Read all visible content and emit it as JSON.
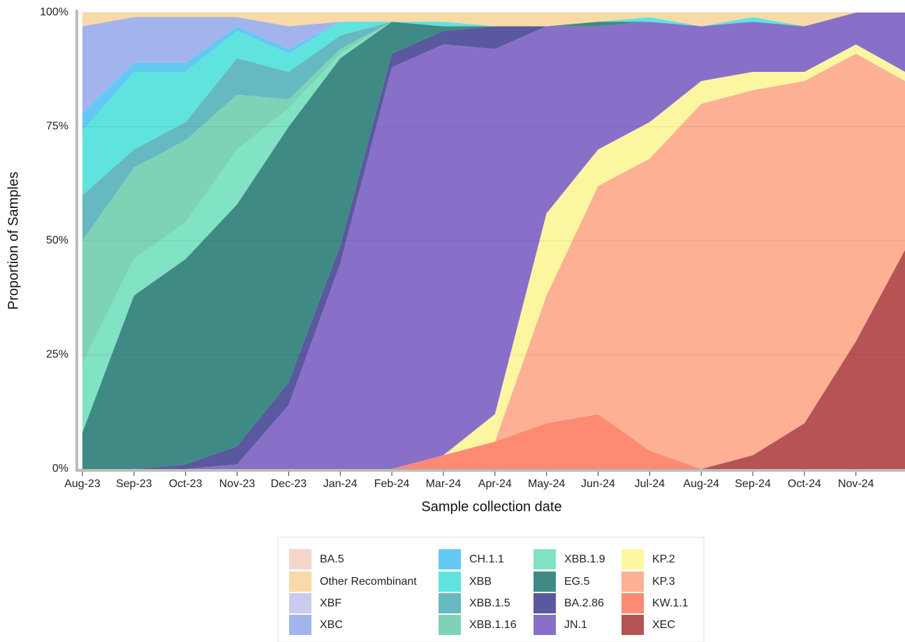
{
  "chart_data": {
    "type": "stacked-area",
    "x_label": "Sample collection date",
    "y_label": "Proportion of Samples",
    "categories": [
      "Aug-23",
      "Sep-23",
      "Oct-23",
      "Nov-23",
      "Dec-23",
      "Jan-24",
      "Feb-24",
      "Mar-24",
      "Apr-24",
      "May-24",
      "Jun-24",
      "Jul-24",
      "Aug-24",
      "Sep-24",
      "Oct-24",
      "Nov-24",
      null
    ],
    "ylim": [
      0,
      100
    ],
    "yticks": [
      {
        "value": 0,
        "label": "0%"
      },
      {
        "value": 25,
        "label": "25%"
      },
      {
        "value": 50,
        "label": "50%"
      },
      {
        "value": 75,
        "label": "75%"
      },
      {
        "value": 100,
        "label": "100%"
      }
    ],
    "grid": true,
    "legend": "bottom",
    "series": [
      {
        "name": "BA.5",
        "color": "#f5d5cc",
        "values": [
          0,
          0,
          0,
          0,
          0,
          0,
          0,
          0,
          0,
          0,
          0,
          0,
          0,
          0,
          0,
          0,
          0
        ]
      },
      {
        "name": "Other Recombinant",
        "color": "#f9d9a8",
        "values": [
          3,
          1,
          1,
          1,
          3,
          2,
          2,
          2,
          3,
          3,
          2,
          1,
          3,
          1,
          3,
          0,
          0
        ]
      },
      {
        "name": "XBF",
        "color": "#c9cbef",
        "values": [
          0,
          0,
          0,
          0,
          0,
          0,
          0,
          0,
          0,
          0,
          0,
          0,
          0,
          0,
          0,
          0,
          0
        ]
      },
      {
        "name": "XBC",
        "color": "#a3b4ec",
        "values": [
          19,
          10,
          10,
          2,
          5,
          0,
          0,
          0,
          0,
          0,
          0,
          0,
          0,
          0,
          0,
          0,
          0
        ]
      },
      {
        "name": "CH.1.1",
        "color": "#63c9f2",
        "values": [
          4,
          2,
          2,
          1,
          1,
          0,
          0,
          0,
          0,
          0,
          0,
          0,
          0,
          0,
          0,
          0,
          0
        ]
      },
      {
        "name": "XBB",
        "color": "#5fe3df",
        "values": [
          14,
          17,
          11,
          6,
          4,
          3,
          0,
          1,
          0,
          0,
          0,
          1,
          0,
          1,
          0,
          0,
          0
        ]
      },
      {
        "name": "XBB.1.5",
        "color": "#66b9c0",
        "values": [
          10,
          4,
          4,
          8,
          6,
          3,
          0,
          0,
          0,
          0,
          0,
          0,
          0,
          0,
          0,
          0,
          0
        ]
      },
      {
        "name": "XBB.1.16",
        "color": "#7ed3b7",
        "values": [
          27,
          20,
          18,
          12,
          2,
          1,
          0,
          0,
          0,
          0,
          0,
          0,
          0,
          0,
          0,
          0,
          0
        ]
      },
      {
        "name": "XBB.1.9",
        "color": "#80e3c3",
        "values": [
          15,
          8,
          8,
          12,
          4,
          1,
          0,
          0,
          0,
          0,
          0,
          0,
          0,
          0,
          0,
          0,
          0
        ]
      },
      {
        "name": "EG.5",
        "color": "#408a86",
        "values": [
          8,
          38,
          45,
          53,
          56,
          41,
          7,
          1,
          0,
          0,
          1,
          0,
          0,
          0,
          0,
          0,
          0
        ]
      },
      {
        "name": "BA.2.86",
        "color": "#5a599f",
        "values": [
          0,
          0,
          1,
          4,
          5,
          4,
          3,
          3,
          5,
          0,
          0,
          0,
          0,
          0,
          0,
          0,
          0
        ]
      },
      {
        "name": "JN.1",
        "color": "#8870c9",
        "values": [
          0,
          0,
          0,
          1,
          14,
          45,
          88,
          90,
          80,
          41,
          27,
          22,
          12,
          11,
          10,
          7,
          13
        ]
      },
      {
        "name": "KP.2",
        "color": "#fdf6a0",
        "values": [
          0,
          0,
          0,
          0,
          0,
          0,
          0,
          0,
          6,
          18,
          8,
          8,
          5,
          4,
          2,
          2,
          2
        ]
      },
      {
        "name": "KP.3",
        "color": "#fdb094",
        "values": [
          0,
          0,
          0,
          0,
          0,
          0,
          0,
          0,
          0,
          28,
          50,
          64,
          80,
          80,
          75,
          63,
          37
        ]
      },
      {
        "name": "KW.1.1",
        "color": "#fd8a72",
        "values": [
          0,
          0,
          0,
          0,
          0,
          0,
          0,
          3,
          6,
          10,
          12,
          4,
          0,
          0,
          0,
          0,
          0
        ]
      },
      {
        "name": "XEC",
        "color": "#b65455",
        "values": [
          0,
          0,
          0,
          0,
          0,
          0,
          0,
          0,
          0,
          0,
          0,
          0,
          0,
          3,
          10,
          28,
          48
        ]
      }
    ]
  }
}
